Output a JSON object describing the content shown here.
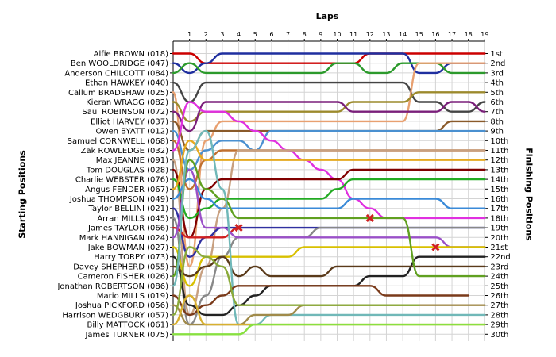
{
  "chart_data": {
    "type": "line",
    "title": "",
    "xlabel": "Laps",
    "ylabel": "Starting Positions",
    "y2label": "Finishing Positions",
    "laps": [
      1,
      2,
      3,
      4,
      5,
      6,
      7,
      8,
      9,
      10,
      11,
      12,
      13,
      14,
      15,
      16,
      17,
      18,
      19
    ],
    "drivers": [
      "Alfie BROWN (018)",
      "Ben WOOLDRIDGE (047)",
      "Anderson CHILCOTT (084)",
      "Ethan HAWKEY (040)",
      "Callum BRADSHAW (025)",
      "Kieran WRAGG (082)",
      "Saul ROBINSON (072)",
      "Elliot HARVEY (037)",
      "Owen BYATT (012)",
      "Samuel CORNWELL (068)",
      "Zak ROWLEDGE (032)",
      "Max JEANNE (091)",
      "Tom DOUGLAS (028)",
      "Charlie WEBSTER (076)",
      "Angus FENDER (067)",
      "Joshua THOMPSON (049)",
      "Taylor BELLINI (021)",
      "Arran MILLS (045)",
      "James TAYLOR (066)",
      "Mark HANNIGAN (024)",
      "Jake BOWMAN (027)",
      "Harry TORPY (073)",
      "Davey SHEPHERD (055)",
      "Cameron FISHER (026)",
      "Jonathan ROBERTSON (086)",
      "Mario MILLS (019)",
      "Joshua PICKFORD (056)",
      "Harrison WEDGBURY (057)",
      "Billy MATTOCK (061)",
      "James TURNER (075)"
    ],
    "finishing_labels": [
      "1st",
      "2nd",
      "3rd",
      "4th",
      "5th",
      "6th",
      "7th",
      "8th",
      "9th",
      "10th",
      "11th",
      "12th",
      "13th",
      "14th",
      "15th",
      "16th",
      "17th",
      "18th",
      "19th",
      "20th",
      "21st",
      "22nd",
      "23rd",
      "24th",
      "25th",
      "26th",
      "27th",
      "28th",
      "29th",
      "30th"
    ],
    "grid": true,
    "series": [
      {
        "color": "#cc0000",
        "positions": [
          1,
          1,
          2,
          2,
          2,
          2,
          2,
          2,
          2,
          2,
          2,
          2,
          1,
          1,
          1,
          1,
          1,
          1,
          1,
          1
        ]
      },
      {
        "color": "#1f2f9f",
        "positions": [
          2,
          3,
          2,
          1,
          1,
          1,
          1,
          1,
          1,
          1,
          1,
          1,
          1,
          1,
          1,
          3,
          3,
          2,
          2,
          2
        ]
      },
      {
        "color": "#2c9a2c",
        "positions": [
          3,
          2,
          3,
          3,
          3,
          3,
          3,
          3,
          3,
          3,
          2,
          2,
          3,
          3,
          2,
          2,
          2,
          3,
          3,
          3
        ]
      },
      {
        "color": "#444444",
        "positions": [
          4,
          6,
          4,
          4,
          4,
          4,
          4,
          4,
          4,
          4,
          4,
          4,
          4,
          4,
          4,
          6,
          6,
          7,
          7,
          6
        ]
      },
      {
        "color": "#e8a070",
        "positions": [
          5,
          23,
          10,
          8,
          8,
          8,
          8,
          8,
          8,
          8,
          8,
          8,
          8,
          8,
          8,
          2,
          2,
          2,
          2,
          2
        ]
      },
      {
        "color": "#9c8a2c",
        "positions": [
          6,
          8,
          7,
          7,
          7,
          7,
          7,
          7,
          7,
          7,
          7,
          6,
          6,
          6,
          6,
          5,
          5,
          5,
          5,
          5
        ]
      },
      {
        "color": "#7a1f7a",
        "positions": [
          7,
          9,
          6,
          6,
          6,
          6,
          6,
          6,
          6,
          6,
          6,
          7,
          7,
          7,
          7,
          7,
          7,
          6,
          6,
          7
        ]
      },
      {
        "color": "#8a5a2a",
        "positions": [
          8,
          11,
          9,
          9,
          9,
          9,
          9,
          9,
          9,
          9,
          9,
          9,
          9,
          9,
          9,
          9,
          9,
          8,
          8,
          8
        ]
      },
      {
        "color": "#4a90d0",
        "positions": [
          9,
          13,
          11,
          10,
          10,
          11,
          9,
          9,
          9,
          9,
          9,
          9,
          9,
          9,
          9,
          9,
          9,
          9,
          9,
          9
        ]
      },
      {
        "color": "#c07030",
        "positions": [
          10,
          15,
          12,
          11,
          11,
          11,
          11,
          11,
          11,
          11,
          11,
          11,
          11,
          11,
          11,
          11,
          11,
          11,
          11,
          11
        ]
      },
      {
        "color": "#e030e0",
        "positions": [
          11,
          6,
          7,
          7,
          8,
          9,
          10,
          11,
          12,
          13,
          14,
          16,
          17,
          18,
          18,
          18,
          18,
          18,
          18,
          18
        ]
      },
      {
        "color": "#c8a080",
        "positions": [
          12,
          28,
          23,
          17,
          11,
          11,
          11,
          11,
          11,
          11,
          11,
          11,
          11,
          11,
          11,
          11,
          11,
          11,
          11,
          11
        ]
      },
      {
        "color": "#800000",
        "positions": [
          13,
          20,
          15,
          14,
          14,
          14,
          14,
          14,
          14,
          14,
          14,
          13,
          13,
          13,
          13,
          13,
          13,
          13,
          13,
          13
        ]
      },
      {
        "color": "#22aa22",
        "positions": [
          14,
          18,
          17,
          16,
          16,
          16,
          16,
          16,
          16,
          16,
          15,
          14,
          14,
          14,
          14,
          14,
          14,
          14,
          14,
          14
        ]
      },
      {
        "color": "#e5aa20",
        "positions": [
          15,
          10,
          12,
          12,
          12,
          12,
          12,
          12,
          12,
          12,
          12,
          12,
          12,
          12,
          12,
          12,
          12,
          12,
          12,
          12
        ]
      },
      {
        "color": "#3a8ad8",
        "positions": [
          16,
          14,
          16,
          17,
          17,
          17,
          17,
          17,
          17,
          17,
          17,
          16,
          16,
          16,
          16,
          16,
          16,
          17,
          17,
          17
        ]
      },
      {
        "color": "#3030a0",
        "positions": [
          17,
          22,
          20,
          19,
          19,
          19,
          19,
          19,
          19,
          19,
          19,
          19,
          19,
          19,
          19,
          19,
          19,
          19,
          19,
          19
        ]
      },
      {
        "color": "#888888",
        "positions": [
          18,
          29,
          26,
          22,
          20,
          20,
          20,
          20,
          20,
          19,
          19,
          19,
          19,
          19,
          19,
          19,
          19,
          19,
          19,
          19
        ]
      },
      {
        "color": "#d02020",
        "positions": [
          19,
          20,
          20,
          20,
          19
        ]
      },
      {
        "color": "#9a50c8",
        "positions": [
          20,
          13,
          19,
          19,
          20,
          20,
          20,
          20,
          20,
          20,
          20,
          20,
          20,
          20,
          20,
          20,
          20,
          21,
          21,
          21
        ]
      },
      {
        "color": "#d8c000",
        "positions": [
          21,
          25,
          22,
          22,
          22,
          22,
          22,
          22,
          21,
          21,
          21,
          21,
          21,
          21,
          21,
          21,
          21,
          21,
          21,
          21
        ]
      },
      {
        "color": "#222222",
        "positions": [
          22,
          27,
          28,
          28,
          27,
          26,
          25,
          25,
          25,
          25,
          25,
          25,
          24,
          24,
          24,
          22,
          22,
          22,
          22,
          22
        ]
      },
      {
        "color": "#5a3a1a",
        "positions": [
          23,
          24,
          23,
          22,
          24,
          23,
          24,
          24,
          24,
          24,
          23,
          23,
          23,
          23,
          23,
          23,
          23,
          23,
          23,
          23
        ]
      },
      {
        "color": "#60a020",
        "positions": [
          24,
          12,
          15,
          16,
          18,
          18,
          18,
          18,
          18,
          18,
          18,
          18,
          18,
          18,
          18,
          24,
          24,
          24,
          24,
          24
        ]
      },
      {
        "color": "#70b8b8",
        "positions": [
          25,
          11,
          9,
          15,
          29,
          29,
          28,
          28,
          28,
          28,
          28,
          28,
          28,
          28,
          28,
          28,
          28,
          28,
          28,
          28
        ]
      },
      {
        "color": "#7a3a1a",
        "positions": [
          26,
          28,
          27,
          26,
          25,
          25,
          25,
          25,
          25,
          25,
          25,
          25,
          25,
          26,
          26,
          26,
          26,
          26,
          26
        ]
      },
      {
        "color": "#a08a4a",
        "positions": [
          27,
          29,
          29,
          29,
          29,
          28,
          28,
          28,
          27,
          27,
          27,
          27,
          27,
          27,
          27,
          27,
          27,
          27,
          27,
          27
        ]
      },
      {
        "color": "#8aaa3a",
        "positions": [
          28,
          21,
          22,
          23,
          27,
          27,
          27,
          27,
          27,
          27,
          27,
          27,
          27,
          27,
          27,
          27
        ]
      },
      {
        "color": "#d8b030",
        "positions": [
          29,
          26,
          29,
          29,
          29,
          29,
          29,
          29,
          29,
          29,
          29,
          29,
          29,
          29,
          29,
          29,
          29,
          29,
          29,
          29
        ]
      },
      {
        "color": "#88e040",
        "positions": [
          30,
          30,
          30,
          30,
          30,
          29,
          29,
          29,
          29,
          29,
          29,
          29,
          29,
          29,
          29,
          29,
          29,
          29,
          29,
          29
        ]
      }
    ],
    "retirements": [
      {
        "lap": 4,
        "position": 19,
        "color": "#d02020"
      },
      {
        "lap": 12,
        "position": 18,
        "color": "#d02020"
      },
      {
        "lap": 16,
        "position": 21,
        "color": "#d02020"
      }
    ]
  }
}
